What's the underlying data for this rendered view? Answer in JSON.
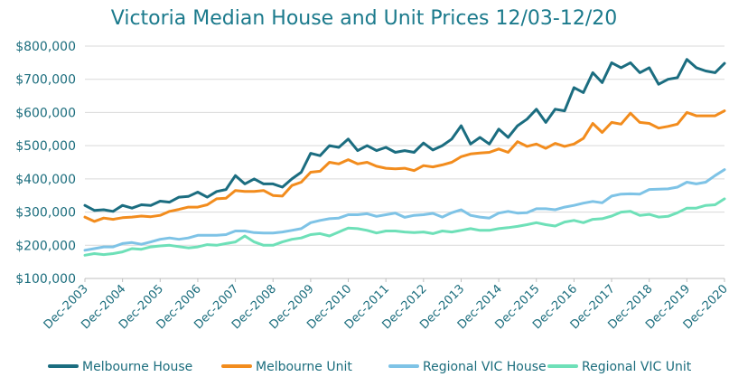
{
  "chart_data": {
    "type": "line",
    "title": "Victoria Median House and Unit Prices 12/03-12/20",
    "xlabel": "",
    "ylabel": "",
    "ylim": [
      100000,
      800000
    ],
    "yticks": [
      100000,
      200000,
      300000,
      400000,
      500000,
      600000,
      700000,
      800000
    ],
    "ytick_labels": [
      "$100,000",
      "$200,000",
      "$300,000",
      "$400,000",
      "$500,000",
      "$600,000",
      "$700,000",
      "$800,000"
    ],
    "xtick_labels": [
      "Dec-2003",
      "Dec-2004",
      "Dec-2005",
      "Dec-2006",
      "Dec-2007",
      "Dec-2008",
      "Dec-2009",
      "Dec-2010",
      "Dec-2011",
      "Dec-2012",
      "Dec-2013",
      "Dec-2014",
      "Dec-2015",
      "Dec-2016",
      "Dec-2017",
      "Dec-2018",
      "Dec-2019",
      "Dec-2020"
    ],
    "x_start": "Dec-2003",
    "x_end": "Dec-2020",
    "x_frequency": "quarterly",
    "grid": true,
    "legend_position": "bottom",
    "series": [
      {
        "name": "Melbourne House",
        "color": "#1b6d80",
        "values": [
          320000,
          305000,
          307000,
          302000,
          320000,
          312000,
          322000,
          320000,
          333000,
          330000,
          345000,
          347000,
          360000,
          345000,
          362000,
          368000,
          410000,
          385000,
          400000,
          385000,
          385000,
          375000,
          400000,
          420000,
          477000,
          470000,
          500000,
          495000,
          520000,
          485000,
          500000,
          485000,
          495000,
          480000,
          485000,
          480000,
          508000,
          487000,
          500000,
          520000,
          560000,
          505000,
          525000,
          505000,
          550000,
          525000,
          560000,
          580000,
          610000,
          570000,
          610000,
          605000,
          675000,
          660000,
          720000,
          690000,
          750000,
          735000,
          750000,
          720000,
          735000,
          685000,
          700000,
          705000,
          760000,
          735000,
          725000,
          720000,
          748000
        ]
      },
      {
        "name": "Melbourne Unit",
        "color": "#f28c1d",
        "values": [
          285000,
          272000,
          282000,
          278000,
          283000,
          285000,
          288000,
          286000,
          290000,
          302000,
          308000,
          315000,
          315000,
          322000,
          340000,
          342000,
          365000,
          362000,
          362000,
          365000,
          350000,
          348000,
          380000,
          390000,
          420000,
          423000,
          450000,
          445000,
          458000,
          445000,
          450000,
          438000,
          432000,
          430000,
          432000,
          425000,
          440000,
          436000,
          442000,
          450000,
          467000,
          475000,
          478000,
          480000,
          490000,
          480000,
          512000,
          498000,
          505000,
          492000,
          507000,
          498000,
          505000,
          522000,
          567000,
          540000,
          570000,
          565000,
          598000,
          570000,
          567000,
          553000,
          558000,
          565000,
          600000,
          590000,
          590000,
          590000,
          605000
        ]
      },
      {
        "name": "Regional VIC House",
        "color": "#7ec3e6",
        "values": [
          185000,
          190000,
          195000,
          195000,
          205000,
          208000,
          203000,
          210000,
          218000,
          222000,
          218000,
          222000,
          230000,
          230000,
          230000,
          232000,
          243000,
          243000,
          238000,
          237000,
          237000,
          240000,
          245000,
          250000,
          268000,
          275000,
          280000,
          282000,
          292000,
          292000,
          295000,
          287000,
          292000,
          297000,
          284000,
          290000,
          292000,
          296000,
          285000,
          298000,
          307000,
          290000,
          285000,
          282000,
          297000,
          302000,
          297000,
          298000,
          310000,
          310000,
          307000,
          315000,
          320000,
          327000,
          332000,
          328000,
          348000,
          354000,
          355000,
          354000,
          368000,
          369000,
          370000,
          375000,
          390000,
          385000,
          390000,
          410000,
          428000
        ]
      },
      {
        "name": "Regional VIC Unit",
        "color": "#6ee0b8",
        "values": [
          170000,
          175000,
          172000,
          175000,
          180000,
          190000,
          188000,
          195000,
          198000,
          200000,
          196000,
          192000,
          195000,
          202000,
          200000,
          205000,
          210000,
          228000,
          210000,
          200000,
          200000,
          210000,
          218000,
          222000,
          232000,
          235000,
          228000,
          240000,
          252000,
          250000,
          245000,
          237000,
          243000,
          243000,
          240000,
          238000,
          240000,
          235000,
          243000,
          240000,
          245000,
          250000,
          245000,
          245000,
          250000,
          253000,
          257000,
          262000,
          268000,
          262000,
          258000,
          270000,
          275000,
          268000,
          278000,
          280000,
          288000,
          300000,
          302000,
          290000,
          293000,
          285000,
          287000,
          298000,
          312000,
          312000,
          320000,
          322000,
          340000
        ]
      }
    ]
  }
}
